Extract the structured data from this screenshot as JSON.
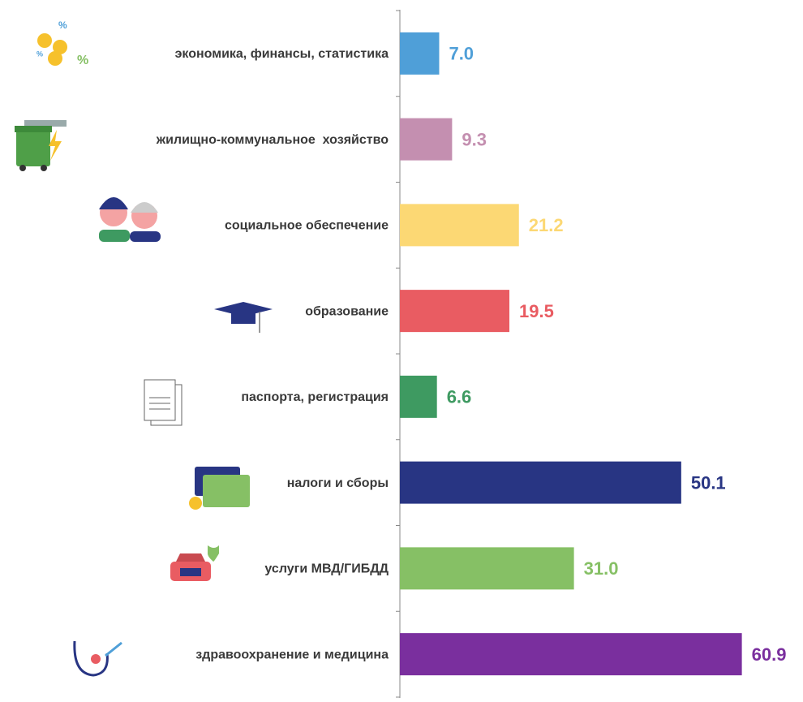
{
  "chart_data": {
    "type": "hbar",
    "categories": [
      "экономика, финансы, статистика",
      "жилищно-коммунальное  хозяйство",
      "социальное обеспечение",
      "образование",
      "паспорта, регистрация",
      "налоги и сборы",
      "услуги МВД/ГИБДД",
      "здравоохранение и медицина"
    ],
    "values": [
      7.0,
      9.3,
      21.2,
      19.5,
      6.6,
      50.1,
      31.0,
      60.9
    ],
    "value_labels": [
      "7.0",
      "9.3",
      "21.2",
      "19.5",
      "6.6",
      "50.1",
      "31.0",
      "60.9"
    ],
    "colors": [
      "#4f9fd8",
      "#c48fb0",
      "#fcd874",
      "#e95c62",
      "#3e9a61",
      "#283583",
      "#86c065",
      "#7a2f9e"
    ],
    "xlim": [
      0,
      65
    ]
  }
}
